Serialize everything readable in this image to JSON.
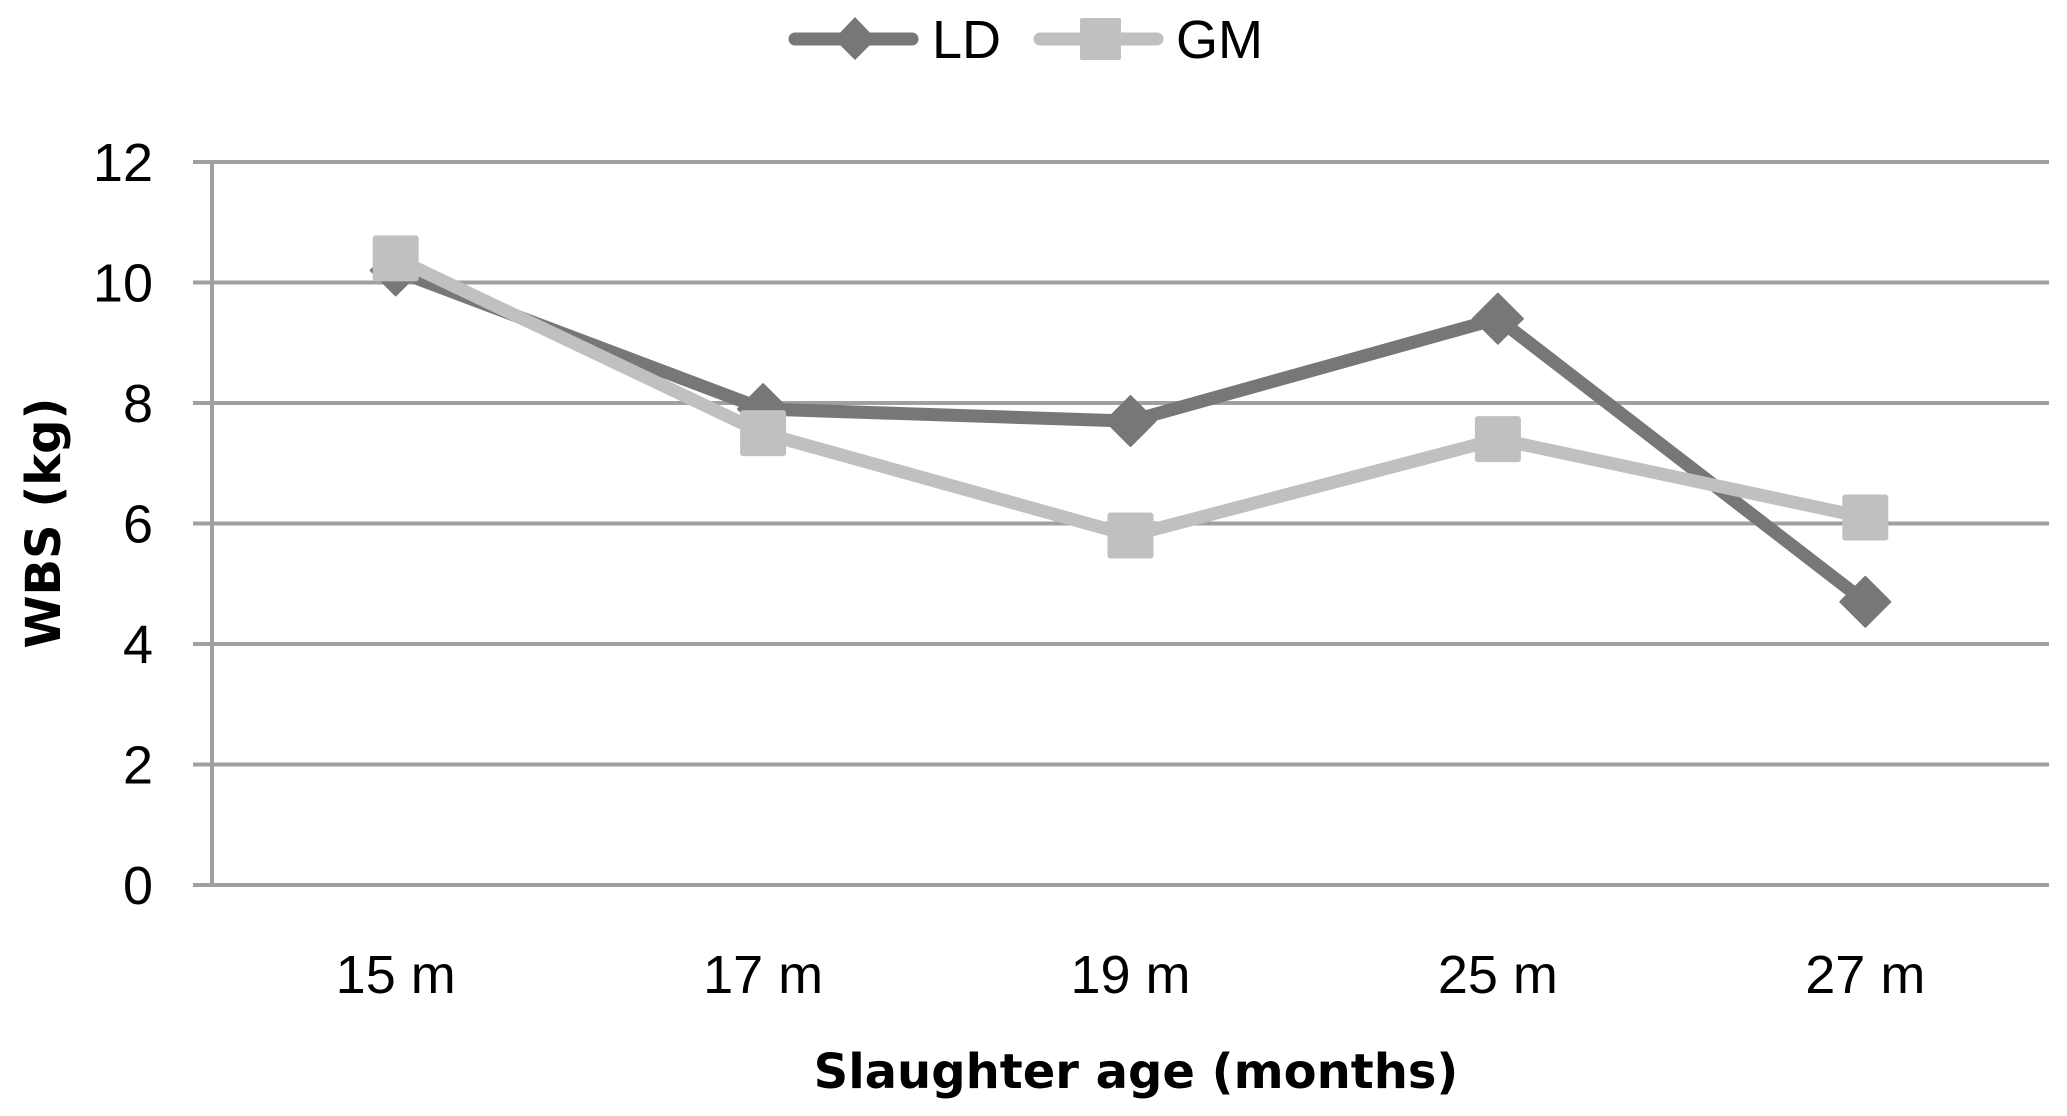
{
  "chart_data": {
    "type": "line",
    "title": "",
    "xlabel": "Slaughter age (months)",
    "ylabel": "WBS (kg)",
    "categories": [
      "15 m",
      "17 m",
      "19 m",
      "25 m",
      "27 m"
    ],
    "ylim": [
      0,
      12
    ],
    "yticks": [
      0,
      2,
      4,
      6,
      8,
      10,
      12
    ],
    "ytick_labels": [
      "0",
      "2",
      "4",
      "6",
      "8",
      "10",
      "12"
    ],
    "grid": "horizontal",
    "legend_position": "top-center",
    "series": [
      {
        "name": "LD",
        "marker": "diamond",
        "color": "#777777",
        "values": [
          10.2,
          7.9,
          7.7,
          9.4,
          4.7
        ]
      },
      {
        "name": "GM",
        "marker": "square",
        "color": "#c0c0c0",
        "values": [
          10.4,
          7.5,
          5.8,
          7.4,
          6.1
        ]
      }
    ],
    "colors": {
      "grid": "#a0a0a0",
      "axis": "#a0a0a0",
      "text": "#000000"
    }
  }
}
